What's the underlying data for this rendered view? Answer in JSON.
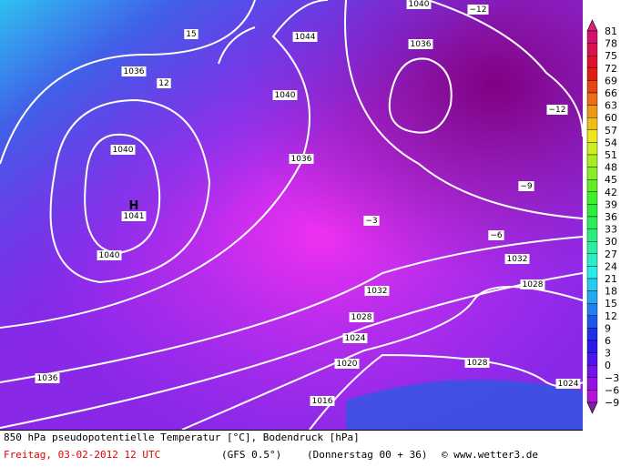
{
  "map": {
    "isobar_labels": [
      "1040",
      "−12",
      "15",
      "1044",
      "1036",
      "1036",
      "12",
      "1040",
      "−12",
      "1040",
      "1036",
      "1041",
      "−9",
      "−3",
      "−6",
      "1040",
      "1032",
      "1028",
      "1032",
      "1028",
      "1024",
      "1028",
      "1020",
      "1016",
      "1036",
      "1024"
    ],
    "high_marker": "H"
  },
  "colorbar": {
    "labels": [
      "81",
      "78",
      "75",
      "72",
      "69",
      "66",
      "63",
      "60",
      "57",
      "54",
      "51",
      "48",
      "45",
      "42",
      "39",
      "36",
      "33",
      "30",
      "27",
      "24",
      "21",
      "18",
      "15",
      "12",
      "9",
      "6",
      "3",
      "0",
      "−3",
      "−6",
      "−9"
    ]
  },
  "footer": {
    "title": "850 hPa pseudopotentielle Temperatur [°C], Bodendruck [hPa]",
    "date": "Freitag, 03-02-2012  12 UTC",
    "model": "(GFS 0.5°)",
    "run": "(Donnerstag 00 + 36)",
    "credit": "© www.wetter3.de"
  }
}
